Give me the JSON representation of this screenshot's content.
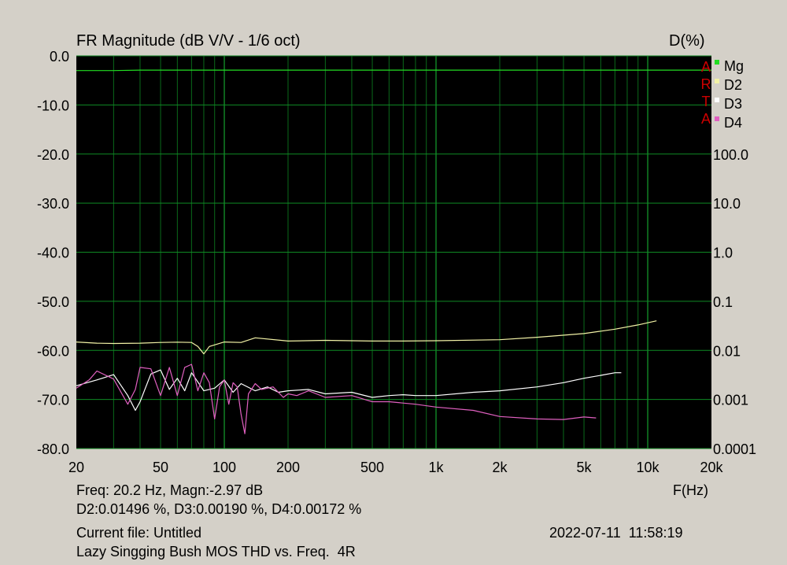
{
  "chart_data": {
    "type": "line",
    "title": "FR Magnitude (dB V/V - 1/6 oct)",
    "right_axis_title": "D(%)",
    "xlabel": "F(Hz)",
    "x_scale": "log",
    "xlim": [
      20,
      20000
    ],
    "ylim_left": [
      -80,
      0
    ],
    "ylim_right": [
      0.0001,
      100
    ],
    "grid": true,
    "x_ticks": [
      {
        "value": 20,
        "label": "20"
      },
      {
        "value": 50,
        "label": "50"
      },
      {
        "value": 100,
        "label": "100"
      },
      {
        "value": 200,
        "label": "200"
      },
      {
        "value": 500,
        "label": "500"
      },
      {
        "value": 1000,
        "label": "1k"
      },
      {
        "value": 2000,
        "label": "2k"
      },
      {
        "value": 5000,
        "label": "5k"
      },
      {
        "value": 10000,
        "label": "10k"
      },
      {
        "value": 20000,
        "label": "20k"
      }
    ],
    "y_ticks_left": [
      {
        "value": 0,
        "label": "0.0"
      },
      {
        "value": -10,
        "label": "-10.0"
      },
      {
        "value": -20,
        "label": "-20.0"
      },
      {
        "value": -30,
        "label": "-30.0"
      },
      {
        "value": -40,
        "label": "-40.0"
      },
      {
        "value": -50,
        "label": "-50.0"
      },
      {
        "value": -60,
        "label": "-60.0"
      },
      {
        "value": -70,
        "label": "-70.0"
      },
      {
        "value": -80,
        "label": "-80.0"
      }
    ],
    "y_ticks_right": [
      {
        "value": 100,
        "label": "100.0"
      },
      {
        "value": 10,
        "label": "10.0"
      },
      {
        "value": 1,
        "label": "1.0"
      },
      {
        "value": 0.1,
        "label": "0.1"
      },
      {
        "value": 0.01,
        "label": "0.01"
      },
      {
        "value": 0.001,
        "label": "0.001"
      },
      {
        "value": 0.0001,
        "label": "0.0001"
      }
    ],
    "legend_placement": "top-right",
    "series": [
      {
        "name": "Mg",
        "color": "#22dd22",
        "axis": "left",
        "x": [
          20,
          30,
          40,
          100,
          200,
          1000,
          5000,
          10000,
          15000,
          20000
        ],
        "y": [
          -3.0,
          -3.0,
          -2.9,
          -2.9,
          -2.9,
          -2.9,
          -2.9,
          -2.9,
          -2.9,
          -2.9
        ]
      },
      {
        "name": "D2",
        "color": "#f2f2a6",
        "axis": "right",
        "x": [
          20,
          25,
          30,
          40,
          50,
          60,
          70,
          75,
          80,
          85,
          100,
          120,
          140,
          200,
          300,
          500,
          700,
          1000,
          2000,
          3000,
          5000,
          7000,
          9000,
          11000
        ],
        "y": [
          0.0148,
          0.014,
          0.0138,
          0.014,
          0.0145,
          0.0147,
          0.0145,
          0.012,
          0.0085,
          0.012,
          0.0148,
          0.0145,
          0.018,
          0.0155,
          0.016,
          0.0155,
          0.0155,
          0.0157,
          0.0165,
          0.0185,
          0.022,
          0.027,
          0.033,
          0.04
        ]
      },
      {
        "name": "D3",
        "color": "#ffffff",
        "axis": "right",
        "x": [
          20,
          25,
          30,
          35,
          38,
          40,
          45,
          50,
          55,
          60,
          65,
          70,
          80,
          90,
          100,
          110,
          120,
          140,
          160,
          180,
          200,
          250,
          300,
          400,
          500,
          600,
          700,
          800,
          1000,
          1500,
          2000,
          3000,
          4000,
          5000,
          6000,
          7000,
          7500
        ],
        "y": [
          0.0019,
          0.0025,
          0.0032,
          0.0012,
          0.0006,
          0.0009,
          0.0033,
          0.004,
          0.0016,
          0.0027,
          0.0015,
          0.0035,
          0.0015,
          0.0017,
          0.0025,
          0.0014,
          0.0021,
          0.0015,
          0.0018,
          0.0014,
          0.0015,
          0.0016,
          0.0013,
          0.0014,
          0.0011,
          0.0012,
          0.00125,
          0.0012,
          0.0012,
          0.0014,
          0.0015,
          0.0018,
          0.0022,
          0.0027,
          0.0031,
          0.0035,
          0.0035
        ]
      },
      {
        "name": "D4",
        "color": "#e060c0",
        "axis": "right",
        "x": [
          20,
          23,
          25,
          30,
          35,
          38,
          40,
          45,
          50,
          55,
          60,
          65,
          70,
          75,
          80,
          85,
          90,
          95,
          100,
          105,
          110,
          115,
          120,
          125,
          130,
          140,
          150,
          170,
          190,
          200,
          220,
          250,
          300,
          400,
          500,
          600,
          800,
          1000,
          1500,
          2000,
          3000,
          4000,
          5000,
          5700
        ],
        "y": [
          0.0017,
          0.0025,
          0.0038,
          0.0026,
          0.0008,
          0.0016,
          0.0045,
          0.0042,
          0.0012,
          0.0045,
          0.0012,
          0.0045,
          0.0052,
          0.0015,
          0.0035,
          0.0022,
          0.0004,
          0.0018,
          0.0025,
          0.0008,
          0.0022,
          0.0018,
          0.0005,
          0.0002,
          0.0013,
          0.0021,
          0.0016,
          0.0018,
          0.0011,
          0.0013,
          0.0012,
          0.0015,
          0.0011,
          0.0012,
          0.0009,
          0.0009,
          0.0008,
          0.0007,
          0.0006,
          0.00045,
          0.0004,
          0.00039,
          0.00044,
          0.00042
        ]
      }
    ]
  },
  "branding": {
    "letters": [
      "A",
      "R",
      "T",
      "A"
    ]
  },
  "info": {
    "readout_line1": "Freq: 20.2 Hz, Magn:-2.97 dB",
    "readout_line2": "D2:0.01496 %, D3:0.00190 %, D4:0.00172 %",
    "current_file": "Current file: Untitled",
    "description": "Lazy Singging Bush MOS THD vs. Freq.  4R",
    "datetime": "2022-07-11  11:58:19"
  }
}
